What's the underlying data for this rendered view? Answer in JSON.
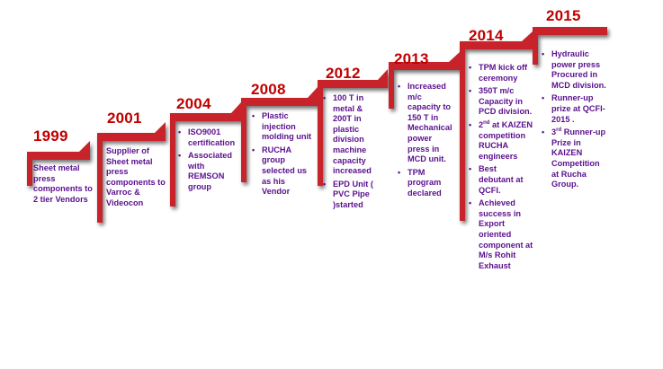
{
  "milestones": [
    {
      "year": "1999",
      "items": [
        "Sheet metal press components to 2 tier Vendors"
      ]
    },
    {
      "year": "2001",
      "items": [
        "Supplier of Sheet metal press components to Varroc & Videocon"
      ]
    },
    {
      "year": "2004",
      "items": [
        "ISO9001 certification",
        "Associated with REMSON group"
      ]
    },
    {
      "year": "2008",
      "items": [
        "Plastic injection molding unit",
        "RUCHA group selected us as his Vendor"
      ]
    },
    {
      "year": "2012",
      "items": [
        "100 T in metal & 200T in plastic division machine capacity increased",
        "EPD Unit ( PVC Pipe )started"
      ]
    },
    {
      "year": "2013",
      "items": [
        "Increased m/c capacity to 150 T in Mechanical power press in MCD unit.",
        "TPM program declared"
      ]
    },
    {
      "year": "2014",
      "items": [
        "TPM kick off ceremony",
        "350T m/c Capacity in PCD division.",
        "at KAIZEN competition RUCHA engineers",
        "Best debutant at QCFI.",
        "Achieved success in Export oriented component at M/s Rohit Exhaust"
      ],
      "sup_prefix": "2nd"
    },
    {
      "year": "2015",
      "items": [
        "Hydraulic power press Procured in MCD division.",
        "Runner-up prize at QCFI-2015 .",
        "Runner-up Prize in KAIZEN Competition at Rucha Group."
      ],
      "sup_prefix": "3rd"
    }
  ],
  "colors": {
    "step": "#c8232b",
    "step_shadow": "#8c8c8c",
    "year": "#c00000",
    "text": "#5b108e"
  }
}
